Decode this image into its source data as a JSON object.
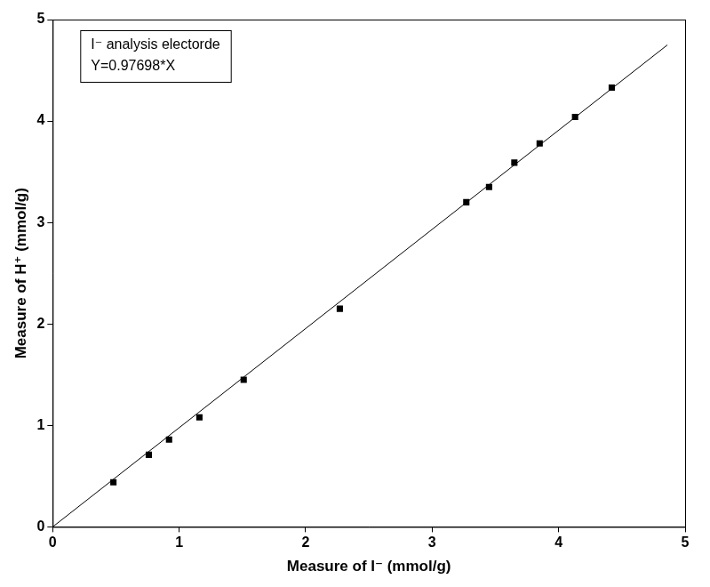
{
  "chart_data": {
    "type": "scatter",
    "x_label": "Measure of I⁻ (mmol/g)",
    "y_label": "Measure of H⁺ (mmol/g)",
    "annotations": [
      "I⁻ analysis electorde",
      "Y=0.97698*X"
    ],
    "series": [
      {
        "type": "scatter",
        "marker": "square",
        "color": "#000000",
        "x": [
          0.48,
          0.76,
          0.92,
          1.16,
          1.51,
          2.27,
          3.27,
          3.45,
          3.65,
          3.85,
          4.13,
          4.42
        ],
        "values": [
          0.44,
          0.71,
          0.86,
          1.08,
          1.45,
          2.15,
          3.2,
          3.35,
          3.59,
          3.78,
          4.04,
          4.33
        ]
      },
      {
        "type": "line",
        "line_style": "solid",
        "color": "#000000",
        "x": [
          0,
          4.86
        ],
        "values": [
          0,
          4.75
        ]
      }
    ],
    "xlim": [
      0,
      5
    ],
    "ylim": [
      0,
      5
    ],
    "xticks": [
      0,
      1,
      2,
      3,
      4,
      5
    ],
    "yticks": [
      0,
      1,
      2,
      3,
      4,
      5
    ],
    "grid": false
  }
}
